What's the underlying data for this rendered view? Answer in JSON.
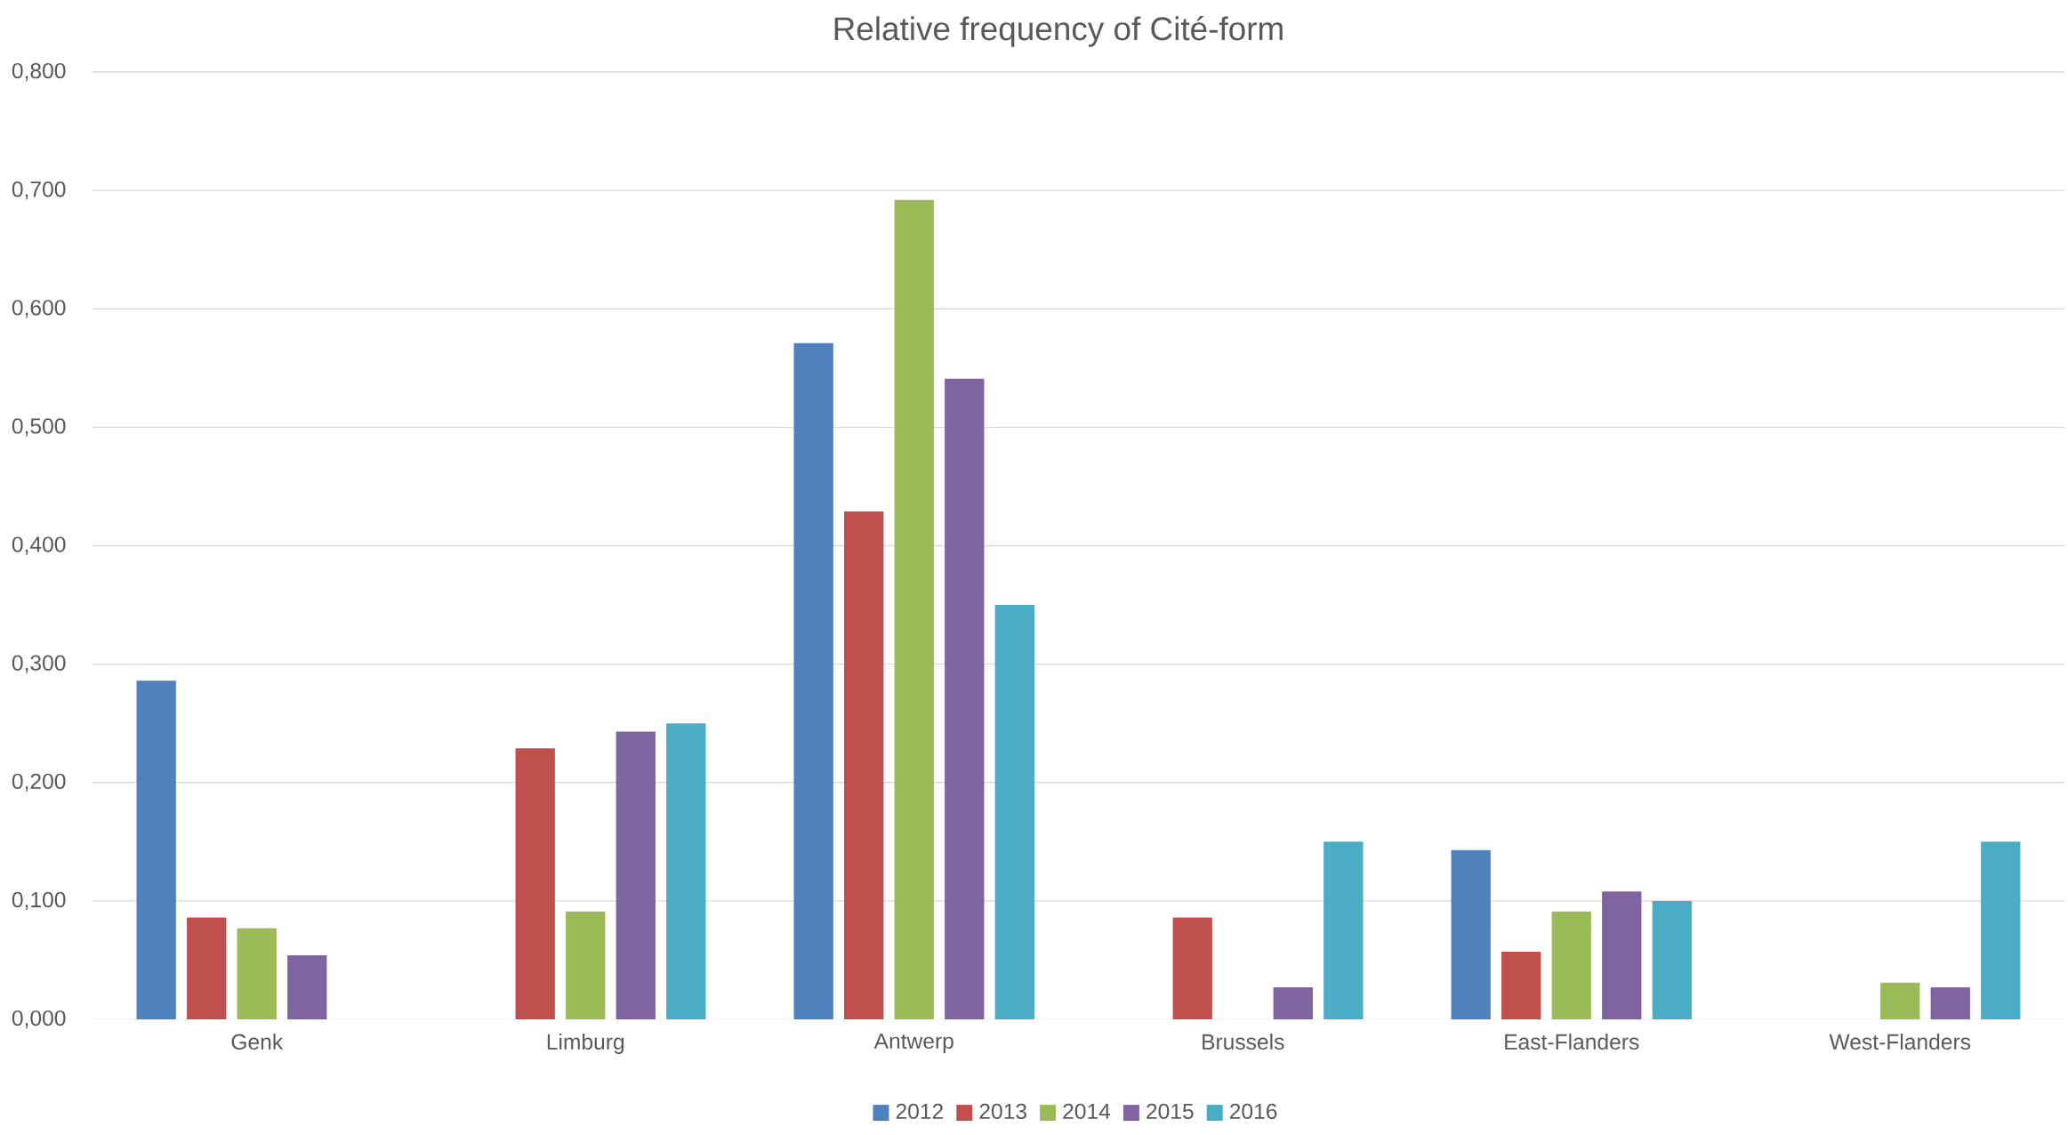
{
  "chart_data": {
    "type": "bar",
    "title": "Relative frequency of Cité-form",
    "categories": [
      "Genk",
      "Limburg",
      "Antwerp",
      "Brussels",
      "East-Flanders",
      "West-Flanders"
    ],
    "series": [
      {
        "name": "2012",
        "color": "#4f81bd",
        "values": [
          0.286,
          null,
          0.571,
          null,
          0.143,
          null
        ]
      },
      {
        "name": "2013",
        "color": "#c0504d",
        "values": [
          0.086,
          0.229,
          0.429,
          0.086,
          0.057,
          null
        ]
      },
      {
        "name": "2014",
        "color": "#9bbb59",
        "values": [
          0.077,
          0.091,
          0.692,
          null,
          0.091,
          0.031
        ]
      },
      {
        "name": "2015",
        "color": "#8064a2",
        "values": [
          0.054,
          0.243,
          0.541,
          0.027,
          0.108,
          0.027
        ]
      },
      {
        "name": "2016",
        "color": "#4bacc6",
        "values": [
          null,
          0.25,
          0.35,
          0.15,
          0.1,
          0.15
        ]
      }
    ],
    "ylim": [
      0,
      0.8
    ],
    "yticks": [
      {
        "value": 0,
        "label": "0,000"
      },
      {
        "value": 0.1,
        "label": "0,100"
      },
      {
        "value": 0.2,
        "label": "0,200"
      },
      {
        "value": 0.3,
        "label": "0,300"
      },
      {
        "value": 0.4,
        "label": "0,400"
      },
      {
        "value": 0.5,
        "label": "0,500"
      },
      {
        "value": 0.6,
        "label": "0,600"
      },
      {
        "value": 0.7,
        "label": "0,700"
      },
      {
        "value": 0.8,
        "label": "0,800"
      }
    ],
    "grid": "y",
    "legend": "bottom"
  }
}
